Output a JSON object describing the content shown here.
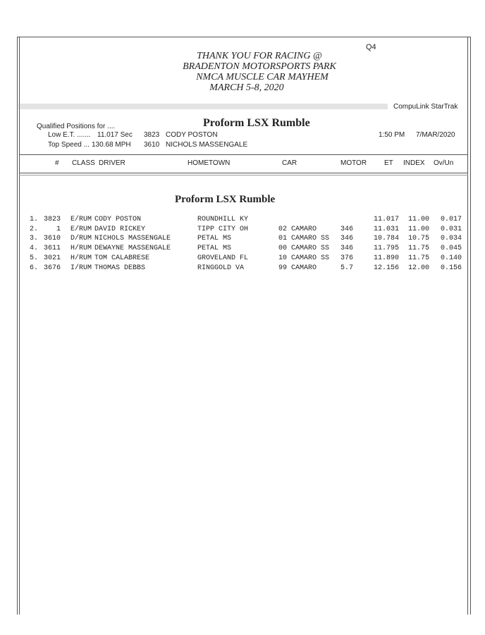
{
  "page_code": "Q4",
  "title_lines": [
    "THANK YOU FOR RACING @",
    "BRADENTON MOTORSPORTS PARK",
    "NMCA MUSCLE CAR MAYHEM",
    "MARCH 5-8, 2020"
  ],
  "brand": "CompuLink  StarTrak",
  "qualified_label": "Qualified Positions for ....",
  "class_name": "Proform LSX Rumble",
  "low_et": {
    "label": "Low E.T. .......",
    "value": "11.017  Sec",
    "car": "3823",
    "driver": "CODY POSTON"
  },
  "top_speed": {
    "label": "Top Speed ...",
    "value": "130.68  MPH",
    "car": "3610",
    "driver": "NICHOLS MASSENGALE"
  },
  "time": "1:50 PM",
  "date": "7/MAR/2020",
  "columns": {
    "num": "#",
    "class": "CLASS",
    "driver": "DRIVER",
    "hometown": "HOMETOWN",
    "car": "CAR",
    "motor": "MOTOR",
    "et": "ET",
    "index": "INDEX",
    "ovun": "Ov/Un"
  },
  "section_title": "Proform LSX Rumble",
  "rows": [
    {
      "pos": "1.",
      "num": "3823",
      "class": "E/RUM",
      "driver": "CODY POSTON",
      "hometown": "ROUNDHILL  KY",
      "car": "",
      "motor": "",
      "et": "11.017",
      "index": "11.00",
      "ovun": "0.017"
    },
    {
      "pos": "2.",
      "num": "1",
      "class": "E/RUM",
      "driver": "DAVID RICKEY",
      "hometown": "TIPP CITY  OH",
      "car": "02 CAMARO",
      "motor": "346",
      "et": "11.031",
      "index": "11.00",
      "ovun": "0.031"
    },
    {
      "pos": "3.",
      "num": "3610",
      "class": "D/RUM",
      "driver": "NICHOLS MASSENGALE",
      "hometown": "PETAL  MS",
      "car": "01 CAMARO SS",
      "motor": "346",
      "et": "10.784",
      "index": "10.75",
      "ovun": "0.034"
    },
    {
      "pos": "4.",
      "num": "3611",
      "class": "H/RUM",
      "driver": "DEWAYNE MASSENGALE",
      "hometown": "PETAL  MS",
      "car": "00 CAMARO SS",
      "motor": "346",
      "et": "11.795",
      "index": "11.75",
      "ovun": "0.045"
    },
    {
      "pos": "5.",
      "num": "3021",
      "class": "H/RUM",
      "driver": "TOM CALABRESE",
      "hometown": "GROVELAND  FL",
      "car": "10 CAMARO SS",
      "motor": "376",
      "et": "11.890",
      "index": "11.75",
      "ovun": "0.140"
    },
    {
      "pos": "6.",
      "num": "3676",
      "class": "I/RUM",
      "driver": "THOMAS DEBBS",
      "hometown": "RINGGOLD  VA",
      "car": "99 CAMARO",
      "motor": "5.7",
      "et": "12.156",
      "index": "12.00",
      "ovun": "0.156"
    }
  ]
}
